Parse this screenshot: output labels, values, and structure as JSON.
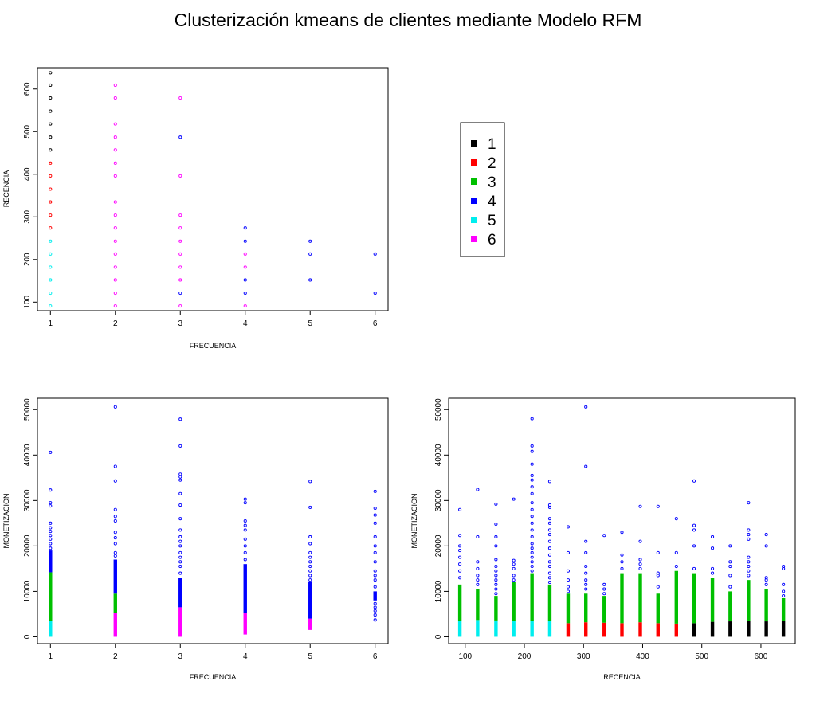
{
  "title": "Clusterización kmeans de clientes mediante Modelo RFM",
  "cluster_colors": {
    "1": "#000000",
    "2": "#ff0000",
    "3": "#00c000",
    "4": "#0000ff",
    "5": "#00eeee",
    "6": "#ff00ff"
  },
  "legend": {
    "entries": [
      {
        "label": "1",
        "color": "#000000"
      },
      {
        "label": "2",
        "color": "#ff0000"
      },
      {
        "label": "3",
        "color": "#00c000"
      },
      {
        "label": "4",
        "color": "#0000ff"
      },
      {
        "label": "5",
        "color": "#00eeee"
      },
      {
        "label": "6",
        "color": "#ff00ff"
      }
    ]
  },
  "chart_data": [
    {
      "id": "freq_vs_rec",
      "type": "scatter",
      "xlabel": "FRECUENCIA",
      "ylabel": "RECENCIA",
      "xlim": [
        0.8,
        6.2
      ],
      "ylim": [
        80,
        650
      ],
      "xticks": [
        1,
        2,
        3,
        4,
        5,
        6
      ],
      "yticks": [
        100,
        200,
        300,
        400,
        500,
        600
      ],
      "groups": [
        {
          "x": 1,
          "cluster": 5,
          "y": [
            91,
            121,
            152,
            182,
            213,
            243
          ]
        },
        {
          "x": 1,
          "cluster": 2,
          "y": [
            274,
            304,
            335,
            365,
            396,
            426
          ]
        },
        {
          "x": 1,
          "cluster": 1,
          "y": [
            457,
            487,
            518,
            548,
            579,
            609,
            638
          ]
        },
        {
          "x": 2,
          "cluster": 6,
          "y": [
            91,
            121,
            152,
            182,
            213,
            243,
            274,
            304,
            335,
            396,
            426,
            457,
            487,
            518,
            579,
            609
          ]
        },
        {
          "x": 3,
          "cluster": 6,
          "y": [
            91,
            152,
            182,
            213,
            243,
            274,
            304,
            396,
            579
          ]
        },
        {
          "x": 3,
          "cluster": 4,
          "y": [
            121,
            487
          ]
        },
        {
          "x": 4,
          "cluster": 6,
          "y": [
            91,
            182,
            213
          ]
        },
        {
          "x": 4,
          "cluster": 4,
          "y": [
            121,
            152,
            243,
            274
          ]
        },
        {
          "x": 5,
          "cluster": 4,
          "y": [
            152,
            213,
            243
          ]
        },
        {
          "x": 6,
          "cluster": 4,
          "y": [
            121,
            213
          ]
        }
      ]
    },
    {
      "id": "freq_vs_mon",
      "type": "scatter",
      "xlabel": "FRECUENCIA",
      "ylabel": "MONETIZACION",
      "xlim": [
        0.8,
        6.2
      ],
      "ylim": [
        -1500,
        52500
      ],
      "xticks": [
        1,
        2,
        3,
        4,
        5,
        6
      ],
      "yticks": [
        0,
        10000,
        20000,
        30000,
        40000,
        50000
      ],
      "segments": [
        {
          "x": 1,
          "cluster": 5,
          "from": 0,
          "to": 3500
        },
        {
          "x": 1,
          "cluster": 3,
          "from": 3500,
          "to": 14200
        },
        {
          "x": 1,
          "cluster": 4,
          "from": 14200,
          "to": 19000
        },
        {
          "x": 2,
          "cluster": 6,
          "from": 0,
          "to": 5200
        },
        {
          "x": 2,
          "cluster": 3,
          "from": 5200,
          "to": 9500
        },
        {
          "x": 2,
          "cluster": 4,
          "from": 9500,
          "to": 17000
        },
        {
          "x": 3,
          "cluster": 6,
          "from": 0,
          "to": 6500
        },
        {
          "x": 3,
          "cluster": 4,
          "from": 6500,
          "to": 13000
        },
        {
          "x": 4,
          "cluster": 6,
          "from": 500,
          "to": 5200
        },
        {
          "x": 4,
          "cluster": 4,
          "from": 5200,
          "to": 16000
        },
        {
          "x": 5,
          "cluster": 6,
          "from": 1500,
          "to": 4000
        },
        {
          "x": 5,
          "cluster": 4,
          "from": 4000,
          "to": 12000
        },
        {
          "x": 6,
          "cluster": 4,
          "from": 8000,
          "to": 10000
        }
      ],
      "outliers": [
        {
          "x": 1,
          "cluster": 4,
          "y": [
            19500,
            20500,
            21500,
            22300,
            23200,
            24000,
            25000,
            28800,
            29500,
            32300,
            40600
          ]
        },
        {
          "x": 2,
          "cluster": 4,
          "y": [
            17800,
            18500,
            20500,
            21800,
            23000,
            25500,
            26500,
            28000,
            34300,
            37500,
            50600
          ]
        },
        {
          "x": 3,
          "cluster": 4,
          "y": [
            14000,
            15500,
            16500,
            17500,
            18500,
            20000,
            21000,
            22000,
            23500,
            26000,
            29000,
            31500,
            34500,
            35200,
            35800,
            42000,
            47900
          ]
        },
        {
          "x": 4,
          "cluster": 4,
          "y": [
            17000,
            18500,
            20000,
            21500,
            23500,
            24500,
            25500,
            29500,
            30300
          ]
        },
        {
          "x": 5,
          "cluster": 4,
          "y": [
            12500,
            13500,
            14500,
            15500,
            16500,
            17500,
            18500,
            20500,
            22000,
            28500,
            34200
          ]
        },
        {
          "x": 6,
          "cluster": 4,
          "y": [
            3700,
            4800,
            5700,
            6500,
            7300,
            11000,
            12500,
            13500,
            14500,
            16500,
            18500,
            20000,
            22000,
            25000,
            26800,
            28300,
            32000
          ]
        }
      ]
    },
    {
      "id": "rec_vs_mon",
      "type": "scatter",
      "xlabel": "RECENCIA",
      "ylabel": "MONETIZACION",
      "xlim": [
        72,
        658
      ],
      "ylim": [
        -1500,
        52500
      ],
      "xticks": [
        100,
        200,
        300,
        400,
        500,
        600
      ],
      "yticks": [
        0,
        10000,
        20000,
        30000,
        40000,
        50000
      ],
      "columns": [
        {
          "x": 91,
          "low": {
            "cluster": 5,
            "to": 3500
          },
          "mid_to": 11500,
          "blue": [
            13000,
            14500,
            16000,
            17500,
            19000,
            20000,
            22300,
            28000
          ]
        },
        {
          "x": 121,
          "low": {
            "cluster": 5,
            "to": 3700
          },
          "mid_to": 10500,
          "blue": [
            11500,
            12500,
            13500,
            15000,
            16500,
            22000,
            32400
          ]
        },
        {
          "x": 152,
          "low": {
            "cluster": 5,
            "to": 3600
          },
          "mid_to": 9000,
          "blue": [
            9500,
            10500,
            11500,
            12500,
            13500,
            14500,
            15500,
            17000,
            20000,
            22000,
            24800,
            29200
          ]
        },
        {
          "x": 182,
          "low": {
            "cluster": 5,
            "to": 3500
          },
          "mid_to": 12000,
          "blue": [
            12500,
            13500,
            15000,
            16000,
            16800,
            30300
          ]
        },
        {
          "x": 213,
          "low": {
            "cluster": 5,
            "to": 3500
          },
          "mid_to": 14000,
          "blue": [
            14500,
            15500,
            16500,
            17500,
            18500,
            19500,
            20500,
            22000,
            23500,
            25000,
            26500,
            28000,
            29500,
            31500,
            33000,
            34500,
            35500,
            38000,
            40800,
            42000,
            48000
          ]
        },
        {
          "x": 243,
          "low": {
            "cluster": 5,
            "to": 3500
          },
          "mid_to": 11500,
          "blue": [
            12000,
            13000,
            14000,
            15500,
            16500,
            18000,
            19500,
            21000,
            22500,
            23500,
            25000,
            26000,
            28500,
            29000,
            34200
          ]
        },
        {
          "x": 274,
          "low": {
            "cluster": 2,
            "to": 3000
          },
          "mid_to": 9500,
          "blue": [
            10000,
            11000,
            12500,
            14500,
            18500,
            24200
          ]
        },
        {
          "x": 304,
          "low": {
            "cluster": 2,
            "to": 3200
          },
          "mid_to": 9500,
          "blue": [
            10500,
            11500,
            12500,
            14000,
            15500,
            18500,
            21000,
            37500,
            50600
          ]
        },
        {
          "x": 335,
          "low": {
            "cluster": 2,
            "to": 3100
          },
          "mid_to": 9000,
          "blue": [
            9500,
            10500,
            11500,
            22300
          ]
        },
        {
          "x": 365,
          "low": {
            "cluster": 2,
            "to": 3000
          },
          "mid_to": 14000,
          "blue": [
            15000,
            16500,
            18000,
            23000
          ]
        },
        {
          "x": 396,
          "low": {
            "cluster": 2,
            "to": 3200
          },
          "mid_to": 14000,
          "blue": [
            15000,
            16000,
            17000,
            21000,
            28700
          ]
        },
        {
          "x": 426,
          "low": {
            "cluster": 2,
            "to": 3000
          },
          "mid_to": 9500,
          "blue": [
            11000,
            13500,
            14000,
            18500,
            28700
          ]
        },
        {
          "x": 457,
          "low": {
            "cluster": 2,
            "to": 2900
          },
          "mid_to": 14500,
          "blue": [
            15500,
            18500,
            26000
          ]
        },
        {
          "x": 487,
          "low": {
            "cluster": 1,
            "to": 3000
          },
          "mid_to": 14000,
          "blue": [
            15000,
            20000,
            23500,
            24500,
            34300
          ]
        },
        {
          "x": 518,
          "low": {
            "cluster": 1,
            "to": 3300
          },
          "mid_to": 13000,
          "blue": [
            14000,
            15000,
            19500,
            22000
          ]
        },
        {
          "x": 548,
          "low": {
            "cluster": 1,
            "to": 3400
          },
          "mid_to": 10000,
          "blue": [
            11000,
            13500,
            15500,
            16500,
            20000
          ]
        },
        {
          "x": 579,
          "low": {
            "cluster": 1,
            "to": 3500
          },
          "mid_to": 12500,
          "blue": [
            13500,
            14500,
            15500,
            16500,
            17500,
            21500,
            22500,
            23500,
            29500
          ]
        },
        {
          "x": 609,
          "low": {
            "cluster": 1,
            "to": 3400
          },
          "mid_to": 10500,
          "blue": [
            11500,
            12500,
            13000,
            20000,
            22500
          ]
        },
        {
          "x": 638,
          "low": {
            "cluster": 1,
            "to": 3500
          },
          "mid_to": 8500,
          "blue": [
            9000,
            10000,
            11500,
            15000,
            15500
          ]
        }
      ]
    }
  ]
}
